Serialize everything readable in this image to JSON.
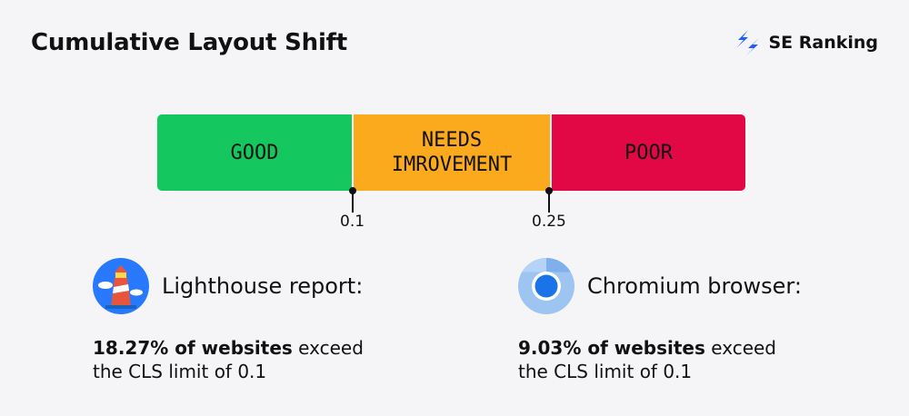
{
  "header": {
    "title": "Cumulative Layout Shift",
    "brand": "SE Ranking",
    "brand_icon": "se-ranking-logo-icon",
    "brand_color": "#1f5cff"
  },
  "scale": {
    "segments": [
      {
        "label": "GOOD",
        "color": "#14c75f"
      },
      {
        "label": "NEEDS\nIMROVEMENT",
        "color": "#fba91d"
      },
      {
        "label": "POOR",
        "color": "#e20846"
      }
    ],
    "thresholds": [
      "0.1",
      "0.25"
    ]
  },
  "stats": [
    {
      "icon": "lighthouse-icon",
      "title": "Lighthouse report:",
      "highlight": "18.27% of websites",
      "rest_line1": " exceed",
      "line2": "the CLS limit of 0.1"
    },
    {
      "icon": "chromium-icon",
      "title": "Chromium browser:",
      "highlight": "9.03% of websites",
      "rest_line1": " exceed",
      "line2": "the CLS limit of 0.1"
    }
  ]
}
